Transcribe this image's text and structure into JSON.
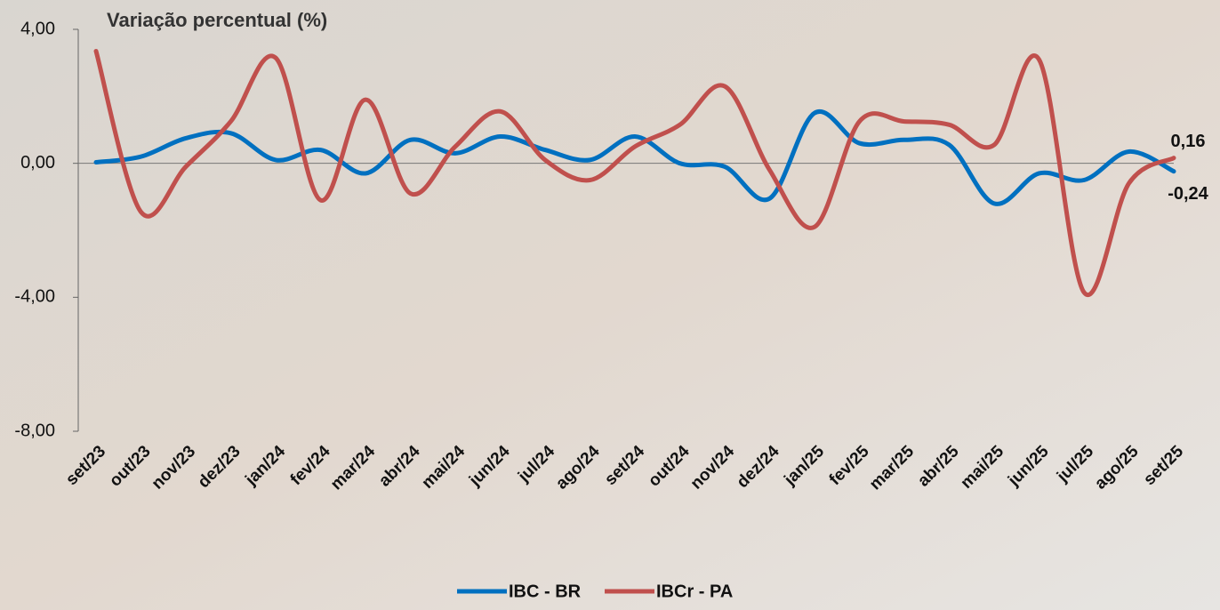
{
  "chart_data": {
    "type": "line",
    "title": "Variação percentual (%)",
    "categories": [
      "set/23",
      "out/23",
      "nov/23",
      "dez/23",
      "jan/24",
      "fev/24",
      "mar/24",
      "abr/24",
      "mai/24",
      "jun/24",
      "jul/24",
      "ago/24",
      "set/24",
      "out/24",
      "nov/24",
      "dez/24",
      "jan/25",
      "fev/25",
      "mar/25",
      "abr/25",
      "mai/25",
      "jun/25",
      "jul/25",
      "ago/25",
      "set/25"
    ],
    "series": [
      {
        "name": "IBC - BR",
        "color": "#0070c0",
        "label_color": "#1f3864",
        "values": [
          0.03,
          0.2,
          0.75,
          0.9,
          0.1,
          0.4,
          -0.3,
          0.7,
          0.3,
          0.8,
          0.4,
          0.1,
          0.8,
          0.0,
          -0.1,
          -1.05,
          1.5,
          0.6,
          0.7,
          0.55,
          -1.2,
          -0.3,
          -0.5,
          0.35,
          -0.24
        ],
        "value_labels": [
          null,
          null,
          null,
          null,
          null,
          null,
          null,
          null,
          null,
          null,
          null,
          null,
          null,
          null,
          null,
          null,
          null,
          null,
          null,
          null,
          null,
          null,
          null,
          null,
          "-0,24"
        ]
      },
      {
        "name": "IBCr - PA",
        "color": "#c0504d",
        "label_color": "#ff0000",
        "values": [
          3.35,
          -1.45,
          -0.1,
          1.25,
          3.15,
          -1.1,
          1.9,
          -0.9,
          0.5,
          1.55,
          0.1,
          -0.5,
          0.5,
          1.15,
          2.3,
          -0.2,
          -1.9,
          1.25,
          1.25,
          1.15,
          0.55,
          3.1,
          -3.85,
          -0.6,
          0.16
        ],
        "value_labels": [
          null,
          null,
          null,
          null,
          null,
          null,
          null,
          null,
          null,
          null,
          null,
          null,
          null,
          null,
          null,
          null,
          null,
          null,
          null,
          null,
          null,
          null,
          null,
          null,
          "0,16"
        ]
      }
    ],
    "ylim": [
      -8,
      4
    ],
    "yticks": [
      {
        "value": -8,
        "label": "-8,00"
      },
      {
        "value": -4,
        "label": "-4,00"
      },
      {
        "value": 0,
        "label": "0,00"
      },
      {
        "value": 4,
        "label": "4,00"
      }
    ],
    "zero_line": true,
    "legend": "bottom"
  }
}
